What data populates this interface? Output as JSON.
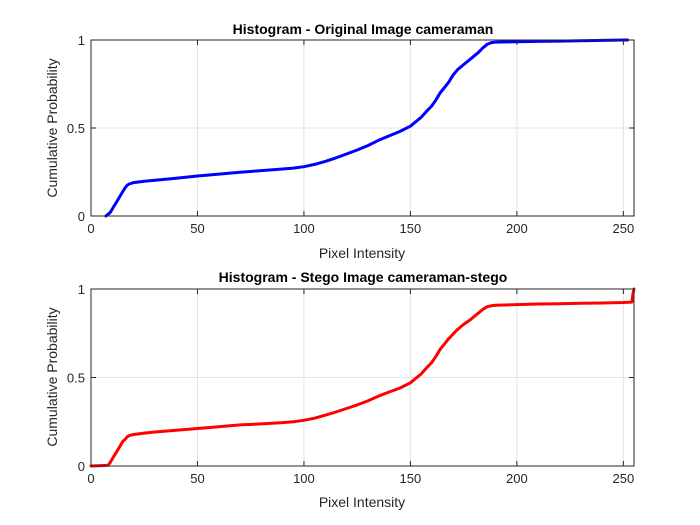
{
  "chart_data": [
    {
      "type": "line",
      "title": "Histogram - Original Image cameraman",
      "xlabel": "Pixel Intensity",
      "ylabel": "Cumulative Probability",
      "xlim": [
        0,
        255
      ],
      "ylim": [
        0,
        1
      ],
      "xticks": [
        0,
        50,
        100,
        150,
        200,
        250
      ],
      "yticks": [
        0,
        0.5,
        1
      ],
      "xtick_labels": [
        "0",
        "50",
        "100",
        "150",
        "200",
        "250"
      ],
      "ytick_labels": [
        "0",
        "0.5",
        "1"
      ],
      "grid": true,
      "series": [
        {
          "color": "#0000ff",
          "x": [
            7,
            9,
            10,
            11,
            12,
            13,
            14,
            15,
            16,
            17,
            18,
            20,
            25,
            30,
            40,
            50,
            60,
            70,
            80,
            90,
            95,
            100,
            105,
            110,
            115,
            120,
            125,
            130,
            135,
            140,
            145,
            150,
            155,
            158,
            160,
            162,
            164,
            166,
            168,
            170,
            172,
            175,
            178,
            180,
            182,
            184,
            186,
            188,
            190,
            200,
            210,
            220,
            230,
            240,
            250,
            252
          ],
          "y": [
            0.0,
            0.02,
            0.04,
            0.06,
            0.08,
            0.1,
            0.12,
            0.14,
            0.16,
            0.175,
            0.182,
            0.19,
            0.197,
            0.203,
            0.215,
            0.227,
            0.238,
            0.249,
            0.258,
            0.267,
            0.272,
            0.28,
            0.293,
            0.31,
            0.33,
            0.352,
            0.375,
            0.4,
            0.43,
            0.455,
            0.48,
            0.51,
            0.56,
            0.6,
            0.625,
            0.66,
            0.7,
            0.73,
            0.76,
            0.8,
            0.83,
            0.86,
            0.89,
            0.91,
            0.93,
            0.955,
            0.975,
            0.985,
            0.988,
            0.99,
            0.992,
            0.994,
            0.996,
            0.998,
            1.0,
            1.0
          ]
        }
      ]
    },
    {
      "type": "line",
      "title": "Histogram - Stego Image cameraman-stego",
      "xlabel": "Pixel Intensity",
      "ylabel": "Cumulative Probability",
      "xlim": [
        0,
        255
      ],
      "ylim": [
        0,
        1
      ],
      "xticks": [
        0,
        50,
        100,
        150,
        200,
        250
      ],
      "yticks": [
        0,
        0.5,
        1
      ],
      "xtick_labels": [
        "0",
        "50",
        "100",
        "150",
        "200",
        "250"
      ],
      "ytick_labels": [
        "0",
        "0.5",
        "1"
      ],
      "grid": true,
      "series": [
        {
          "color": "#ff0000",
          "x": [
            0,
            5,
            8,
            9,
            10,
            11,
            12,
            13,
            14,
            15,
            16,
            17,
            18,
            20,
            25,
            30,
            40,
            50,
            60,
            70,
            80,
            90,
            95,
            100,
            105,
            110,
            115,
            120,
            125,
            130,
            135,
            140,
            145,
            150,
            155,
            158,
            160,
            162,
            164,
            166,
            168,
            170,
            172,
            175,
            178,
            180,
            182,
            184,
            186,
            188,
            190,
            200,
            210,
            220,
            230,
            240,
            250,
            254,
            254.5,
            255
          ],
          "y": [
            0.0,
            0.002,
            0.004,
            0.02,
            0.04,
            0.06,
            0.08,
            0.1,
            0.12,
            0.14,
            0.15,
            0.165,
            0.172,
            0.178,
            0.186,
            0.192,
            0.202,
            0.212,
            0.222,
            0.232,
            0.238,
            0.245,
            0.25,
            0.258,
            0.27,
            0.287,
            0.305,
            0.325,
            0.345,
            0.368,
            0.395,
            0.418,
            0.44,
            0.47,
            0.52,
            0.56,
            0.585,
            0.62,
            0.66,
            0.69,
            0.72,
            0.745,
            0.77,
            0.8,
            0.825,
            0.845,
            0.865,
            0.885,
            0.9,
            0.905,
            0.908,
            0.912,
            0.915,
            0.917,
            0.919,
            0.921,
            0.924,
            0.926,
            0.97,
            1.0
          ]
        }
      ]
    }
  ]
}
